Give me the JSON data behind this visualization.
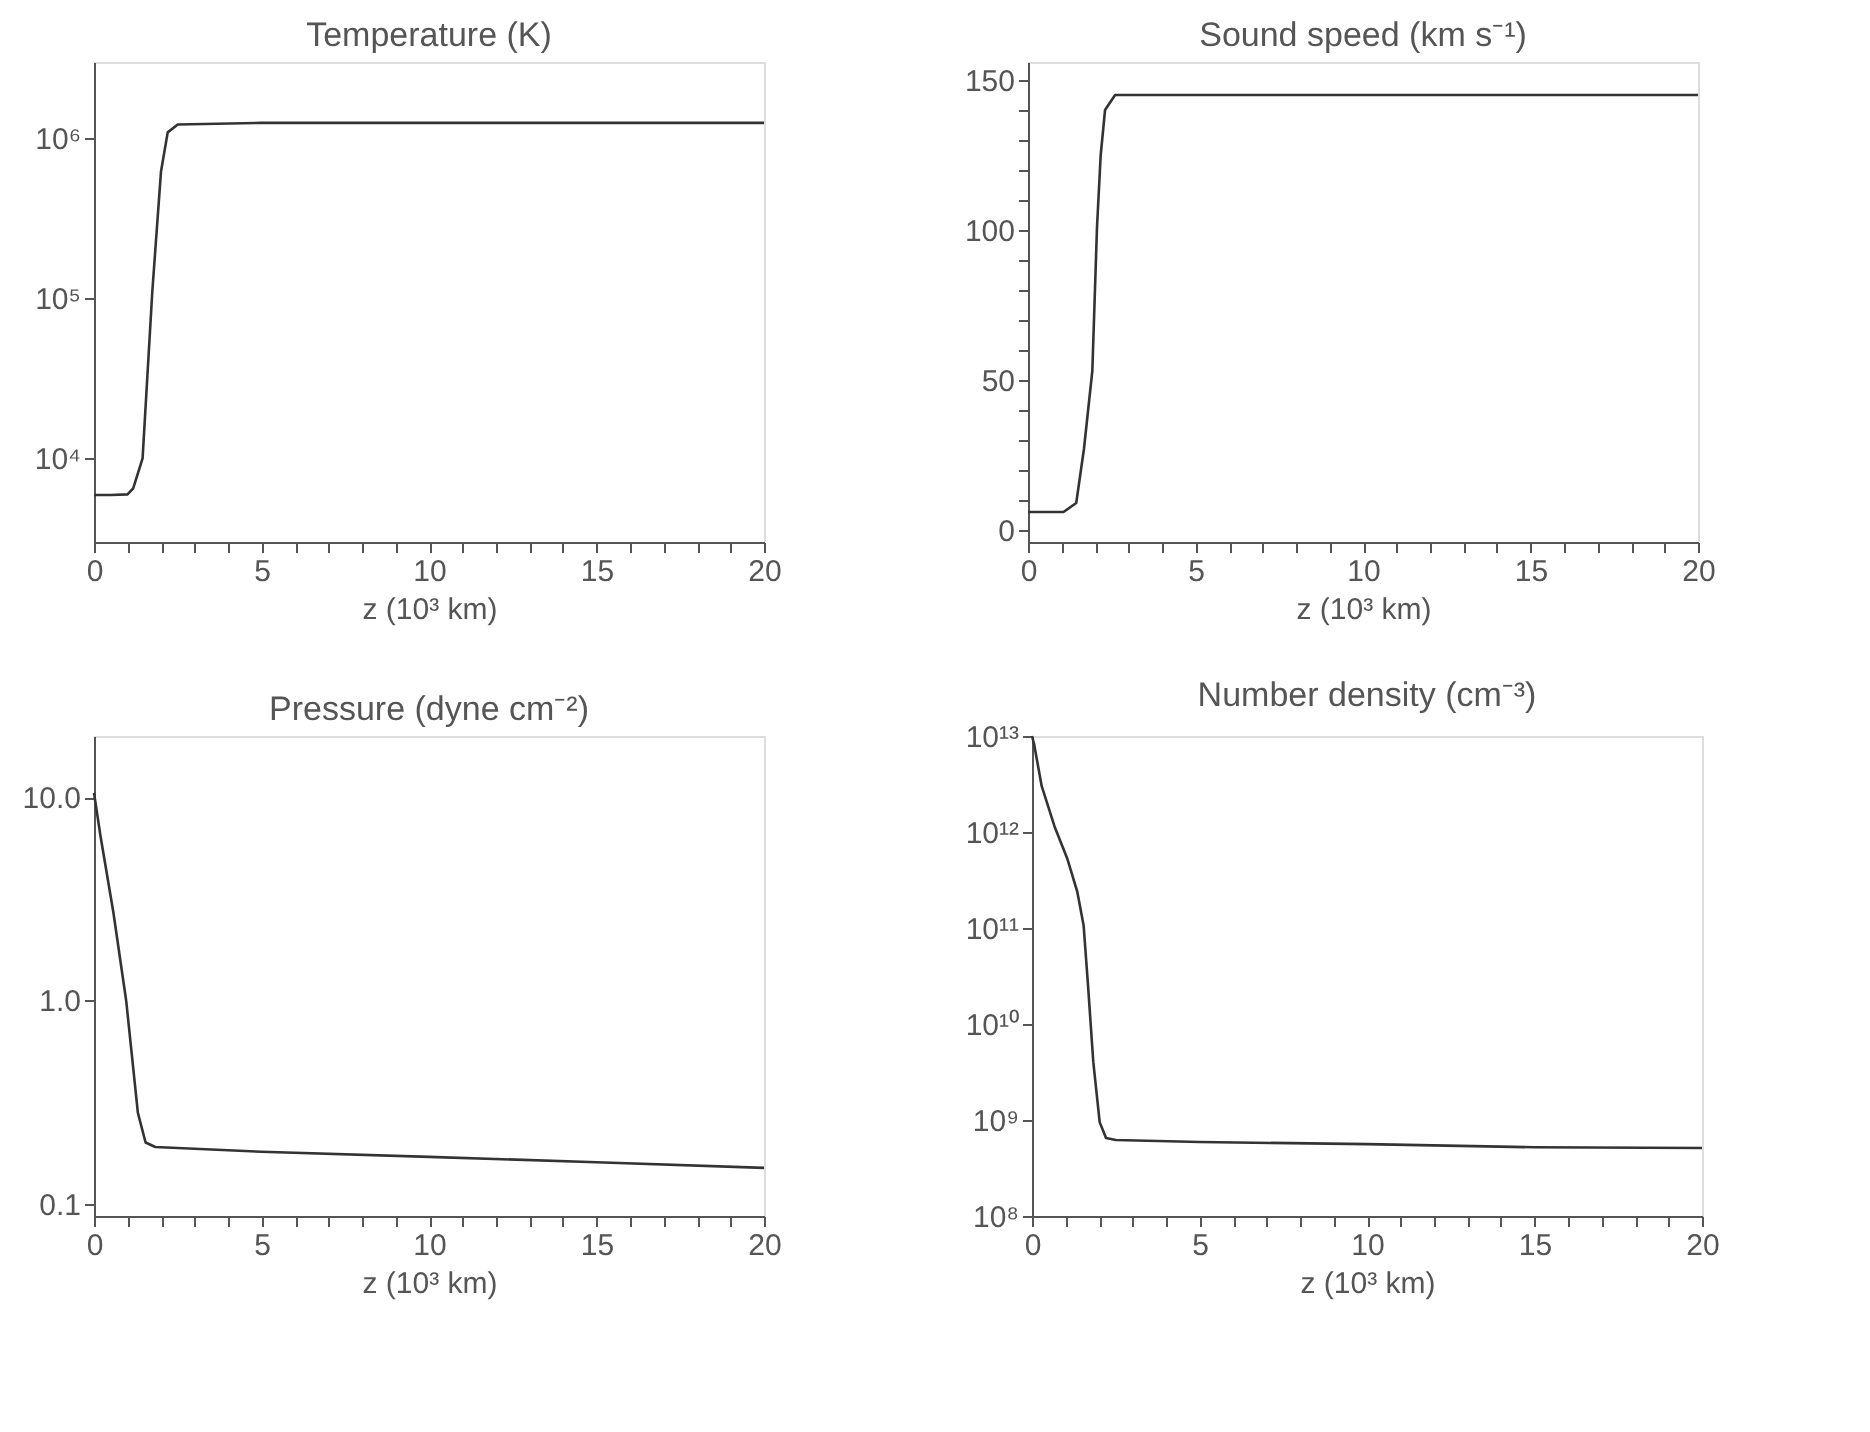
{
  "chart_data": [
    {
      "type": "line",
      "title": "Temperature (K)",
      "xlabel": "z (10³ km)",
      "log": "y",
      "grid": false,
      "xlim": [
        0,
        20
      ],
      "ylim": [
        3000,
        3000000
      ],
      "xticks": [
        0,
        {
          "value": 1,
          "label": null
        },
        {
          "value": 2,
          "label": null
        },
        {
          "value": 3,
          "label": null
        },
        {
          "value": 4,
          "label": null
        },
        5,
        {
          "value": 6,
          "label": null
        },
        {
          "value": 7,
          "label": null
        },
        {
          "value": 8,
          "label": null
        },
        {
          "value": 9,
          "label": null
        },
        10,
        {
          "value": 11,
          "label": null
        },
        {
          "value": 12,
          "label": null
        },
        {
          "value": 13,
          "label": null
        },
        {
          "value": 14,
          "label": null
        },
        15,
        {
          "value": 16,
          "label": null
        },
        {
          "value": 17,
          "label": null
        },
        {
          "value": 18,
          "label": null
        },
        {
          "value": 19,
          "label": null
        },
        20
      ],
      "yticks": [
        {
          "value": 10000,
          "label": "10⁴"
        },
        {
          "value": 100000,
          "label": "10⁵"
        },
        {
          "value": 1000000,
          "label": "10⁶"
        }
      ],
      "series": [
        {
          "color": "#333333",
          "x": [
            0,
            0.5,
            1.0,
            1.17,
            1.45,
            1.74,
            2.0,
            2.2,
            2.5,
            5,
            10,
            15,
            20
          ],
          "values": [
            5900,
            5900,
            5950,
            6500,
            10000,
            110000,
            620000,
            1090000,
            1220000,
            1250000,
            1250000,
            1250000,
            1250000
          ]
        }
      ]
    },
    {
      "type": "line",
      "title": "Sound speed (km s⁻¹)",
      "xlabel": "z (10³ km)",
      "grid": false,
      "xlim": [
        0,
        20
      ],
      "ylim": [
        -4,
        156
      ],
      "xticks": [
        0,
        {
          "value": 1,
          "label": null
        },
        {
          "value": 2,
          "label": null
        },
        {
          "value": 3,
          "label": null
        },
        {
          "value": 4,
          "label": null
        },
        5,
        {
          "value": 6,
          "label": null
        },
        {
          "value": 7,
          "label": null
        },
        {
          "value": 8,
          "label": null
        },
        {
          "value": 9,
          "label": null
        },
        10,
        {
          "value": 11,
          "label": null
        },
        {
          "value": 12,
          "label": null
        },
        {
          "value": 13,
          "label": null
        },
        {
          "value": 14,
          "label": null
        },
        15,
        {
          "value": 16,
          "label": null
        },
        {
          "value": 17,
          "label": null
        },
        {
          "value": 18,
          "label": null
        },
        {
          "value": 19,
          "label": null
        },
        20
      ],
      "yticks": [
        0,
        {
          "value": 10,
          "label": null
        },
        {
          "value": 20,
          "label": null
        },
        {
          "value": 30,
          "label": null
        },
        {
          "value": 40,
          "label": null
        },
        50,
        {
          "value": 60,
          "label": null
        },
        {
          "value": 70,
          "label": null
        },
        {
          "value": 80,
          "label": null
        },
        {
          "value": 90,
          "label": null
        },
        100,
        {
          "value": 110,
          "label": null
        },
        {
          "value": 120,
          "label": null
        },
        {
          "value": 130,
          "label": null
        },
        {
          "value": 140,
          "label": null
        },
        150
      ],
      "series": [
        {
          "color": "#333333",
          "x": [
            0,
            0.5,
            1.06,
            1.44,
            1.67,
            1.92,
            2.06,
            2.17,
            2.3,
            2.6,
            5,
            10,
            15,
            20
          ],
          "values": [
            6,
            6,
            6,
            9,
            27,
            53,
            101,
            125,
            140,
            145,
            145,
            145,
            145,
            145
          ]
        }
      ]
    },
    {
      "type": "line",
      "title": "Pressure (dyne cm⁻²)",
      "xlabel": "z (10³ km)",
      "log": "y",
      "grid": false,
      "xlim": [
        0,
        20
      ],
      "ylim": [
        0.087,
        20
      ],
      "xticks": [
        0,
        {
          "value": 1,
          "label": null
        },
        {
          "value": 2,
          "label": null
        },
        {
          "value": 3,
          "label": null
        },
        {
          "value": 4,
          "label": null
        },
        5,
        {
          "value": 6,
          "label": null
        },
        {
          "value": 7,
          "label": null
        },
        {
          "value": 8,
          "label": null
        },
        {
          "value": 9,
          "label": null
        },
        10,
        {
          "value": 11,
          "label": null
        },
        {
          "value": 12,
          "label": null
        },
        {
          "value": 13,
          "label": null
        },
        {
          "value": 14,
          "label": null
        },
        15,
        {
          "value": 16,
          "label": null
        },
        {
          "value": 17,
          "label": null
        },
        {
          "value": 18,
          "label": null
        },
        {
          "value": 19,
          "label": null
        },
        20
      ],
      "yticks": [
        0.1,
        {
          "value": 1,
          "label": "1.0"
        },
        {
          "value": 10,
          "label": "10.0"
        }
      ],
      "series": [
        {
          "color": "#333333",
          "x": [
            0,
            0.19,
            0.58,
            0.96,
            1.31,
            1.54,
            1.83,
            5,
            10,
            15,
            20
          ],
          "values": [
            10.5,
            6.5,
            2.7,
            1.0,
            0.28,
            0.2,
            0.19,
            0.18,
            0.17,
            0.16,
            0.15
          ]
        }
      ]
    },
    {
      "type": "line",
      "title": "Number density (cm⁻³)",
      "xlabel": "z (10³ km)",
      "log": "y",
      "grid": false,
      "xlim": [
        0,
        20
      ],
      "ylim": [
        100000000,
        10000000000000
      ],
      "xticks": [
        0,
        {
          "value": 1,
          "label": null
        },
        {
          "value": 2,
          "label": null
        },
        {
          "value": 3,
          "label": null
        },
        {
          "value": 4,
          "label": null
        },
        5,
        {
          "value": 6,
          "label": null
        },
        {
          "value": 7,
          "label": null
        },
        {
          "value": 8,
          "label": null
        },
        {
          "value": 9,
          "label": null
        },
        10,
        {
          "value": 11,
          "label": null
        },
        {
          "value": 12,
          "label": null
        },
        {
          "value": 13,
          "label": null
        },
        {
          "value": 14,
          "label": null
        },
        15,
        {
          "value": 16,
          "label": null
        },
        {
          "value": 17,
          "label": null
        },
        {
          "value": 18,
          "label": null
        },
        {
          "value": 19,
          "label": null
        },
        20
      ],
      "yticks": [
        {
          "value": 100000000,
          "label": "10⁸"
        },
        {
          "value": 1000000000,
          "label": "10⁹"
        },
        {
          "value": 10000000000,
          "label": "10¹⁰"
        },
        {
          "value": 100000000000,
          "label": "10¹¹"
        },
        {
          "value": 1000000000000,
          "label": "10¹²"
        },
        {
          "value": 10000000000000,
          "label": "10¹³"
        }
      ],
      "series": [
        {
          "color": "#333333",
          "x": [
            0,
            0.06,
            0.29,
            0.67,
            1.06,
            1.35,
            1.54,
            1.67,
            1.83,
            2.02,
            2.21,
            2.5,
            5,
            10,
            15,
            20
          ],
          "values": [
            10000000000000,
            8300000000000,
            3000000000000,
            1150000000000,
            520000000000,
            240000000000,
            107000000000,
            26000000000,
            4000000000,
            950000000,
            650000000,
            620000000,
            590000000,
            560000000,
            520000000,
            510000000
          ]
        }
      ]
    }
  ]
}
